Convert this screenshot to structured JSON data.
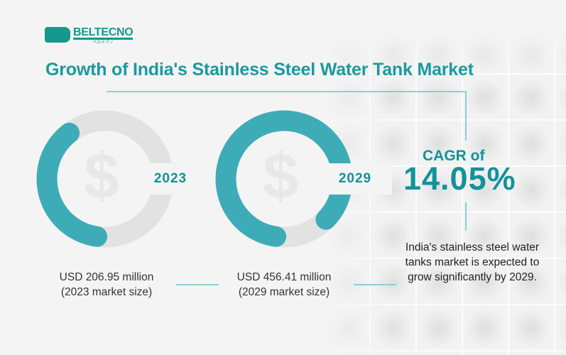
{
  "brand": {
    "name": "BELTECNO",
    "sub": "ベルテクノ"
  },
  "title": "Growth of India's Stainless Steel Water Tank Market",
  "colors": {
    "accent": "#1a9aa0",
    "track": "#e3e2e2"
  },
  "markets": [
    {
      "year": "2023",
      "value": "USD 206.95 million",
      "note": "(2023 market size)",
      "icon": "dollar-icon"
    },
    {
      "year": "2029",
      "value": "USD 456.41 million",
      "note": "(2029 market size)",
      "icon": "dollar-icon"
    }
  ],
  "cagr": {
    "label": "CAGR of",
    "value": "14.05%"
  },
  "description": "India's stainless steel water tanks market is expected to grow significantly by 2029."
}
